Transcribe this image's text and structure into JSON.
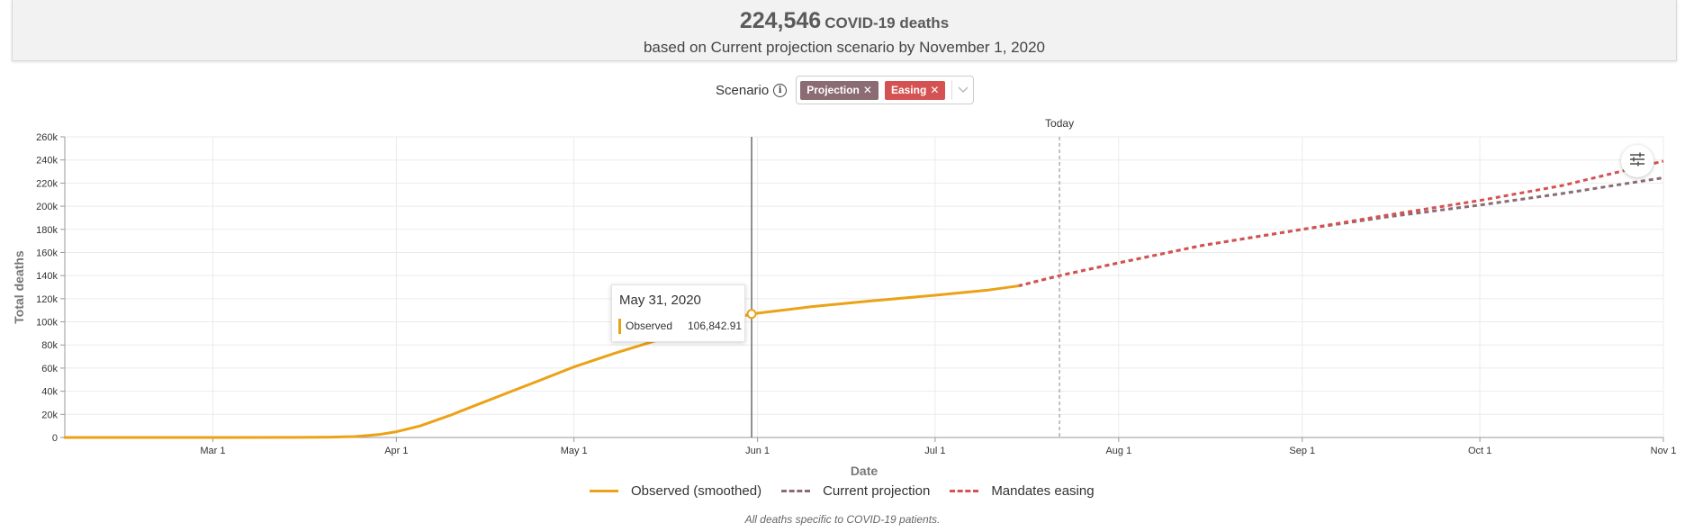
{
  "header": {
    "total_deaths": "224,546",
    "unit_label": "COVID-19 deaths",
    "subtitle": "based on Current projection scenario by November 1, 2020"
  },
  "scenario": {
    "label": "Scenario",
    "info_icon": "info-icon",
    "tags": [
      {
        "label": "Projection",
        "color": "#8a6c72"
      },
      {
        "label": "Easing",
        "color": "#d55252"
      }
    ],
    "dropdown_icon": "chevron-down-icon"
  },
  "tooltip": {
    "date": "May 31, 2020",
    "series": "Observed",
    "value": "106,842.91"
  },
  "settings_icon": "sliders-icon",
  "footnote": "All deaths specific to COVID-19 patients.",
  "chart_data": {
    "type": "line",
    "title": "",
    "xlabel": "Date",
    "ylabel": "Total deaths",
    "x_start": "2020-02-05",
    "x_end": "2020-11-01",
    "ylim": [
      0,
      260000
    ],
    "y_ticks": [
      0,
      20000,
      40000,
      60000,
      80000,
      100000,
      120000,
      140000,
      160000,
      180000,
      200000,
      220000,
      240000,
      260000
    ],
    "y_tick_labels": [
      "0",
      "20k",
      "40k",
      "60k",
      "80k",
      "100k",
      "120k",
      "140k",
      "160k",
      "180k",
      "200k",
      "220k",
      "240k",
      "260k"
    ],
    "x_ticks": [
      {
        "date": "2020-03-01",
        "label": "Mar 1"
      },
      {
        "date": "2020-04-01",
        "label": "Apr 1"
      },
      {
        "date": "2020-05-01",
        "label": "May 1"
      },
      {
        "date": "2020-06-01",
        "label": "Jun 1"
      },
      {
        "date": "2020-07-01",
        "label": "Jul 1"
      },
      {
        "date": "2020-08-01",
        "label": "Aug 1"
      },
      {
        "date": "2020-09-01",
        "label": "Sep 1"
      },
      {
        "date": "2020-10-01",
        "label": "Oct 1"
      },
      {
        "date": "2020-11-01",
        "label": "Nov 1"
      }
    ],
    "grid": true,
    "legend_position": "bottom-center",
    "today": {
      "date": "2020-07-22",
      "label": "Today"
    },
    "hover": {
      "date": "2020-05-31",
      "value": 106842.91
    },
    "series": [
      {
        "name": "Observed (smoothed)",
        "color": "#eba217",
        "style": "solid",
        "points": [
          [
            "2020-02-05",
            0
          ],
          [
            "2020-03-01",
            0
          ],
          [
            "2020-03-15",
            50
          ],
          [
            "2020-03-21",
            300
          ],
          [
            "2020-03-25",
            800
          ],
          [
            "2020-03-29",
            2500
          ],
          [
            "2020-04-01",
            5000
          ],
          [
            "2020-04-05",
            10000
          ],
          [
            "2020-04-10",
            19000
          ],
          [
            "2020-04-15",
            29000
          ],
          [
            "2020-04-20",
            39000
          ],
          [
            "2020-04-25",
            49000
          ],
          [
            "2020-05-01",
            61000
          ],
          [
            "2020-05-08",
            73000
          ],
          [
            "2020-05-15",
            84000
          ],
          [
            "2020-05-22",
            95000
          ],
          [
            "2020-05-31",
            106842.91
          ],
          [
            "2020-06-10",
            113000
          ],
          [
            "2020-06-20",
            118000
          ],
          [
            "2020-07-01",
            123000
          ],
          [
            "2020-07-10",
            127500
          ],
          [
            "2020-07-15",
            131000
          ]
        ]
      },
      {
        "name": "Current projection",
        "color": "#8a6c72",
        "style": "dashed",
        "points": [
          [
            "2020-07-15",
            131000
          ],
          [
            "2020-07-22",
            140000
          ],
          [
            "2020-08-01",
            151000
          ],
          [
            "2020-08-15",
            166000
          ],
          [
            "2020-09-01",
            180000
          ],
          [
            "2020-09-15",
            190500
          ],
          [
            "2020-10-01",
            201000
          ],
          [
            "2020-10-15",
            211000
          ],
          [
            "2020-11-01",
            224546
          ]
        ]
      },
      {
        "name": "Mandates easing",
        "color": "#d55252",
        "style": "dashed",
        "points": [
          [
            "2020-07-15",
            131000
          ],
          [
            "2020-07-22",
            140000
          ],
          [
            "2020-08-01",
            151000
          ],
          [
            "2020-08-15",
            166000
          ],
          [
            "2020-09-01",
            180000
          ],
          [
            "2020-09-15",
            192000
          ],
          [
            "2020-10-01",
            205000
          ],
          [
            "2020-10-15",
            218000
          ],
          [
            "2020-11-01",
            239000
          ]
        ]
      }
    ]
  }
}
